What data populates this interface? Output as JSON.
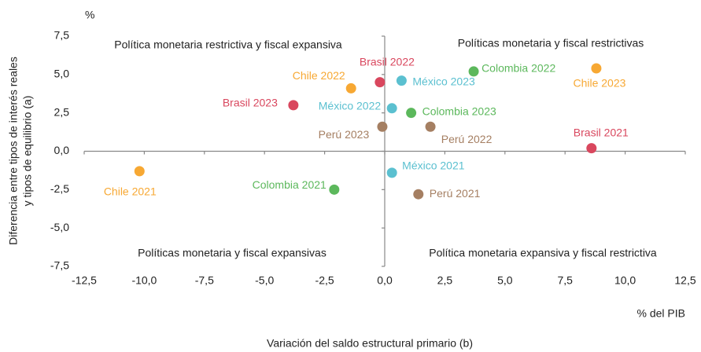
{
  "chart_data": {
    "type": "scatter",
    "y_unit": "%",
    "ylabel": [
      "Diferencia entre tipos de interés reales",
      "y tipos de equilibrio (a)"
    ],
    "x_unit": "% del PIB",
    "xlabel": "Variación del saldo estructural primario (b)",
    "annotations": [
      "Política monetaria restrictiva y fiscal expansiva",
      "Políticas monetaria y fiscal restrictivas",
      "Políticas monetaria y fiscal expansivas",
      "Política monetaria expansiva y fiscal restrictiva"
    ],
    "xlim": [
      -12.5,
      12.5
    ],
    "ylim": [
      -7.5,
      7.5
    ],
    "xticks": [
      {
        "value": -12.5,
        "label": "-12,5"
      },
      {
        "value": -10,
        "label": "-10,0"
      },
      {
        "value": -7.5,
        "label": "-7,5"
      },
      {
        "value": -5,
        "label": "-5,0"
      },
      {
        "value": -2.5,
        "label": "-2,5"
      },
      {
        "value": 0,
        "label": "0,0"
      },
      {
        "value": 2.5,
        "label": "2,5"
      },
      {
        "value": 5,
        "label": "5,0"
      },
      {
        "value": 7.5,
        "label": "7,5"
      },
      {
        "value": 10,
        "label": "10,0"
      },
      {
        "value": 12.5,
        "label": "12,5"
      }
    ],
    "yticks": [
      {
        "value": 7.5,
        "label": "7,5"
      },
      {
        "value": 5,
        "label": "5,0"
      },
      {
        "value": 2.5,
        "label": "2,5"
      },
      {
        "value": 0,
        "label": "0,0"
      },
      {
        "value": -2.5,
        "label": "-2,5"
      },
      {
        "value": -5,
        "label": "-5,0"
      },
      {
        "value": -7.5,
        "label": "-7,5"
      }
    ],
    "series": [
      {
        "name": "Chile 2021",
        "color": "#f7a833",
        "x": [
          -10.2
        ],
        "values": [
          -1.3
        ]
      },
      {
        "name": "Chile 2022",
        "color": "#f7a833",
        "x": [
          -1.4
        ],
        "values": [
          4.1
        ]
      },
      {
        "name": "Chile 2023",
        "color": "#f7a833",
        "x": [
          8.8
        ],
        "values": [
          5.4
        ]
      },
      {
        "name": "Brasil 2021",
        "color": "#d9475e",
        "x": [
          8.6
        ],
        "values": [
          0.2
        ]
      },
      {
        "name": "Brasil 2022",
        "color": "#d9475e",
        "x": [
          -0.2
        ],
        "values": [
          4.5
        ]
      },
      {
        "name": "Brasil 2023",
        "color": "#d9475e",
        "x": [
          -3.8
        ],
        "values": [
          3.0
        ]
      },
      {
        "name": "México 2021",
        "color": "#5bc0d0",
        "x": [
          0.3
        ],
        "values": [
          -1.4
        ]
      },
      {
        "name": "México 2022",
        "color": "#5bc0d0",
        "x": [
          0.3
        ],
        "values": [
          2.8
        ]
      },
      {
        "name": "México 2023",
        "color": "#5bc0d0",
        "x": [
          0.7
        ],
        "values": [
          4.6
        ]
      },
      {
        "name": "Colombia 2021",
        "color": "#5cb85c",
        "x": [
          -2.1
        ],
        "values": [
          -2.5
        ]
      },
      {
        "name": "Colombia 2022",
        "color": "#5cb85c",
        "x": [
          3.7
        ],
        "values": [
          5.2
        ]
      },
      {
        "name": "Colombia 2023",
        "color": "#5cb85c",
        "x": [
          1.1
        ],
        "values": [
          2.5
        ]
      },
      {
        "name": "Perú 2021",
        "color": "#a57f62",
        "x": [
          1.4
        ],
        "values": [
          -2.8
        ]
      },
      {
        "name": "Perú 2022",
        "color": "#a57f62",
        "x": [
          1.9
        ],
        "values": [
          1.6
        ]
      },
      {
        "name": "Perú 2023",
        "color": "#a57f62",
        "x": [
          -0.1
        ],
        "values": [
          1.6
        ]
      }
    ]
  }
}
